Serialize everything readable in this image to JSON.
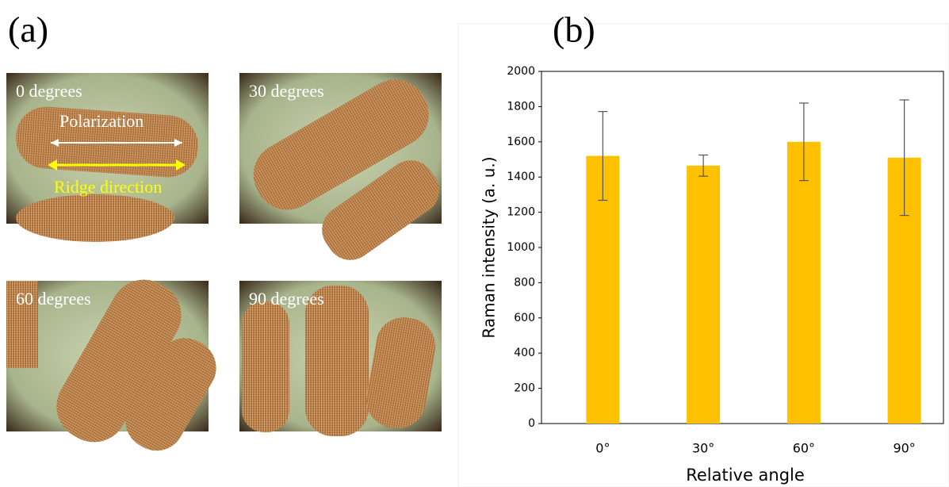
{
  "panel_a": {
    "label": "(a)",
    "images": [
      {
        "caption": "0 degrees",
        "annotations": [
          "Polarization",
          "Ridge direction"
        ]
      },
      {
        "caption": "30 degrees"
      },
      {
        "caption": "60 degrees"
      },
      {
        "caption": "90 degrees"
      }
    ]
  },
  "chart_data": {
    "type": "bar",
    "panel_label": "(b)",
    "x_label": "Relative angle",
    "y_label": "Raman intensity (a. u.)",
    "categories": [
      "0°",
      "30°",
      "60°",
      "90°"
    ],
    "values": [
      1520,
      1465,
      1600,
      1510
    ],
    "errors": [
      252,
      60,
      220,
      328
    ],
    "color": "#ffc000",
    "ylim": [
      0,
      2000
    ],
    "yticks": [
      0,
      200,
      400,
      600,
      800,
      1000,
      1200,
      1400,
      1600,
      1800,
      2000
    ]
  }
}
